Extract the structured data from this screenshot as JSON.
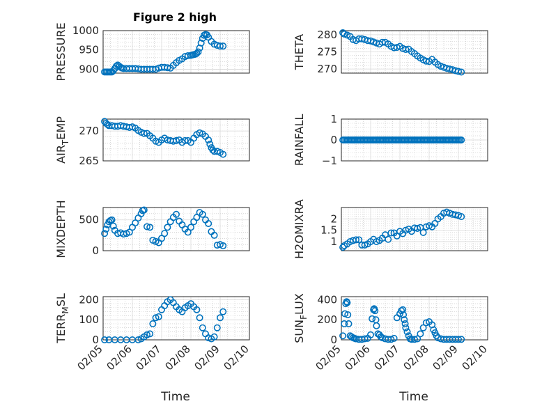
{
  "figure": {
    "title": "Figure 2 high",
    "marker_color": "#0072BD",
    "x_tick_labels": [
      "02/05",
      "02/06",
      "02/07",
      "02/08",
      "02/09",
      "02/10"
    ],
    "x_label": "Time"
  },
  "chart_data": [
    {
      "type": "scatter",
      "ylabel": "PRESSURE",
      "ylim": [
        890,
        1000
      ],
      "yticks": [
        900,
        950,
        1000
      ],
      "xlim": [
        "02/05",
        "02/10"
      ],
      "grid": true,
      "minor_grid": true,
      "x": [
        5.05,
        5.1,
        5.15,
        5.2,
        5.25,
        5.3,
        5.35,
        5.4,
        5.45,
        5.5,
        5.55,
        5.6,
        5.65,
        5.7,
        5.8,
        5.9,
        6.0,
        6.1,
        6.2,
        6.3,
        6.4,
        6.5,
        6.6,
        6.7,
        6.8,
        6.9,
        7.0,
        7.1,
        7.2,
        7.3,
        7.4,
        7.5,
        7.6,
        7.7,
        7.8,
        7.9,
        8.0,
        8.05,
        8.1,
        8.15,
        8.2,
        8.25,
        8.3,
        8.35,
        8.4,
        8.45,
        8.5,
        8.55,
        8.6,
        8.7,
        8.8,
        8.9,
        9.0,
        9.1
      ],
      "y": [
        893,
        893,
        893,
        893,
        893,
        893,
        896,
        902,
        908,
        911,
        908,
        905,
        903,
        902,
        902,
        902,
        902,
        902,
        901,
        900,
        900,
        900,
        900,
        900,
        900,
        903,
        905,
        905,
        904,
        903,
        910,
        917,
        923,
        927,
        933,
        935,
        936,
        937,
        938,
        939,
        941,
        945,
        955,
        968,
        980,
        988,
        990,
        989,
        983,
        972,
        965,
        962,
        960,
        960
      ],
      "annotation": ""
    },
    {
      "type": "scatter",
      "ylabel": "THETA",
      "ylim": [
        268.8,
        281.2
      ],
      "yticks": [
        270,
        275,
        280
      ],
      "xlim": [
        "02/05",
        "02/10"
      ],
      "grid": true,
      "minor_grid": true,
      "x": [
        5.05,
        5.1,
        5.2,
        5.3,
        5.4,
        5.5,
        5.6,
        5.7,
        5.8,
        5.9,
        6.0,
        6.1,
        6.2,
        6.3,
        6.4,
        6.5,
        6.6,
        6.7,
        6.8,
        6.9,
        7.0,
        7.1,
        7.2,
        7.3,
        7.4,
        7.5,
        7.6,
        7.7,
        7.8,
        7.9,
        8.0,
        8.1,
        8.2,
        8.3,
        8.4,
        8.5,
        8.6,
        8.7,
        8.8,
        8.9,
        9.0,
        9.1
      ],
      "y": [
        280.6,
        280.2,
        279.9,
        279.5,
        278.6,
        278.3,
        278.8,
        278.8,
        278.6,
        278.3,
        278.2,
        277.9,
        277.6,
        277.3,
        277.8,
        277.8,
        277.3,
        276.6,
        276.2,
        276.3,
        276.6,
        276.0,
        275.7,
        275.8,
        275.1,
        274.5,
        273.8,
        273.2,
        272.7,
        272.3,
        272.2,
        272.8,
        272.0,
        271.3,
        270.8,
        270.5,
        270.2,
        270.0,
        269.8,
        269.5,
        269.3,
        269.1
      ],
      "annotation": ""
    },
    {
      "type": "scatter",
      "ylabel": "AIR_TEMP",
      "ylim": [
        265,
        272
      ],
      "yticks": [
        265,
        270
      ],
      "xlim": [
        "02/05",
        "02/10"
      ],
      "grid": true,
      "minor_grid": true,
      "x": [
        5.05,
        5.1,
        5.15,
        5.2,
        5.3,
        5.4,
        5.5,
        5.6,
        5.7,
        5.8,
        5.9,
        6.0,
        6.1,
        6.2,
        6.3,
        6.4,
        6.5,
        6.6,
        6.7,
        6.8,
        6.9,
        7.0,
        7.1,
        7.2,
        7.3,
        7.4,
        7.5,
        7.6,
        7.7,
        7.8,
        7.9,
        8.0,
        8.1,
        8.2,
        8.3,
        8.4,
        8.5,
        8.6,
        8.65,
        8.7,
        8.75,
        8.8,
        8.9,
        9.0,
        9.1
      ],
      "y": [
        271.6,
        271.3,
        271.1,
        270.9,
        270.9,
        270.8,
        270.8,
        270.9,
        270.8,
        270.7,
        270.6,
        270.7,
        270.5,
        270.1,
        269.8,
        269.6,
        269.6,
        269.2,
        268.8,
        268.3,
        268.1,
        268.5,
        268.8,
        268.5,
        268.4,
        268.3,
        268.4,
        268.5,
        268.1,
        268.4,
        268.4,
        268.1,
        268.8,
        269.4,
        269.7,
        269.5,
        269.1,
        268.5,
        267.8,
        267.2,
        266.8,
        266.6,
        266.6,
        266.4,
        266.1
      ],
      "annotation": ""
    },
    {
      "type": "scatter",
      "ylabel": "RAINFALL",
      "ylim": [
        -1,
        1
      ],
      "yticks": [
        -1,
        0,
        1
      ],
      "xlim": [
        "02/05",
        "02/10"
      ],
      "grid": true,
      "minor_grid": true,
      "x": [
        5.05,
        5.1,
        5.15,
        5.2,
        5.25,
        5.3,
        5.35,
        5.4,
        5.45,
        5.5,
        5.55,
        5.6,
        5.65,
        5.7,
        5.75,
        5.8,
        5.85,
        5.9,
        5.95,
        6.0,
        6.05,
        6.1,
        6.15,
        6.2,
        6.25,
        6.3,
        6.35,
        6.4,
        6.45,
        6.5,
        6.55,
        6.6,
        6.65,
        6.7,
        6.75,
        6.8,
        6.85,
        6.9,
        6.95,
        7.0,
        7.05,
        7.1,
        7.15,
        7.2,
        7.25,
        7.3,
        7.35,
        7.4,
        7.45,
        7.5,
        7.55,
        7.6,
        7.65,
        7.7,
        7.75,
        7.8,
        7.85,
        7.9,
        7.95,
        8.0,
        8.05,
        8.1,
        8.15,
        8.2,
        8.25,
        8.3,
        8.35,
        8.4,
        8.45,
        8.5,
        8.55,
        8.6,
        8.65,
        8.7,
        8.75,
        8.8,
        8.85,
        8.9,
        8.95,
        9.0,
        9.05,
        9.1
      ],
      "y": [
        0,
        0,
        0,
        0,
        0,
        0,
        0,
        0,
        0,
        0,
        0,
        0,
        0,
        0,
        0,
        0,
        0,
        0,
        0,
        0,
        0,
        0,
        0,
        0,
        0,
        0,
        0,
        0,
        0,
        0,
        0,
        0,
        0,
        0,
        0,
        0,
        0,
        0,
        0,
        0,
        0,
        0,
        0,
        0,
        0,
        0,
        0,
        0,
        0,
        0,
        0,
        0,
        0,
        0,
        0,
        0,
        0,
        0,
        0,
        0,
        0,
        0,
        0,
        0,
        0,
        0,
        0,
        0,
        0,
        0,
        0,
        0,
        0,
        0,
        0,
        0,
        0,
        0,
        0,
        0,
        0,
        0
      ],
      "annotation": ""
    },
    {
      "type": "scatter",
      "ylabel": "MIXDEPTH",
      "ylim": [
        0,
        700
      ],
      "yticks": [
        0,
        500
      ],
      "xlim": [
        "02/05",
        "02/10"
      ],
      "grid": true,
      "minor_grid": true,
      "x": [
        5.05,
        5.1,
        5.15,
        5.2,
        5.25,
        5.3,
        5.35,
        5.4,
        5.5,
        5.6,
        5.7,
        5.8,
        5.9,
        6.0,
        6.1,
        6.2,
        6.3,
        6.35,
        6.4,
        6.5,
        6.6,
        6.7,
        6.8,
        6.9,
        7.0,
        7.1,
        7.2,
        7.3,
        7.4,
        7.5,
        7.6,
        7.7,
        7.8,
        7.9,
        8.0,
        8.1,
        8.2,
        8.3,
        8.4,
        8.5,
        8.6,
        8.7,
        8.8,
        8.9,
        9.0,
        9.1
      ],
      "y": [
        280,
        350,
        420,
        470,
        490,
        500,
        400,
        330,
        280,
        290,
        270,
        280,
        300,
        380,
        450,
        530,
        600,
        650,
        660,
        390,
        380,
        170,
        150,
        130,
        200,
        280,
        380,
        470,
        540,
        590,
        480,
        420,
        350,
        300,
        380,
        470,
        540,
        620,
        590,
        500,
        440,
        310,
        250,
        90,
        100,
        80
      ],
      "annotation": ""
    },
    {
      "type": "scatter",
      "ylabel": "H2OMIXRA",
      "ylim": [
        0.6,
        2.5
      ],
      "yticks": [
        1,
        1.5,
        2
      ],
      "xlim": [
        "02/05",
        "02/10"
      ],
      "grid": true,
      "minor_grid": true,
      "x": [
        5.05,
        5.1,
        5.2,
        5.3,
        5.4,
        5.5,
        5.6,
        5.7,
        5.8,
        5.9,
        6.0,
        6.1,
        6.2,
        6.3,
        6.4,
        6.5,
        6.6,
        6.7,
        6.8,
        6.9,
        7.0,
        7.1,
        7.2,
        7.3,
        7.4,
        7.5,
        7.6,
        7.7,
        7.8,
        7.9,
        8.0,
        8.1,
        8.2,
        8.3,
        8.4,
        8.5,
        8.6,
        8.7,
        8.8,
        8.9,
        9.0,
        9.1
      ],
      "y": [
        0.75,
        0.82,
        0.9,
        1.0,
        1.05,
        1.08,
        1.08,
        0.85,
        0.85,
        0.9,
        1.0,
        1.1,
        1.0,
        1.05,
        1.15,
        1.3,
        1.1,
        1.38,
        1.38,
        1.25,
        1.45,
        1.35,
        1.5,
        1.55,
        1.45,
        1.6,
        1.58,
        1.62,
        1.4,
        1.65,
        1.7,
        1.65,
        1.8,
        2.0,
        2.1,
        2.25,
        2.3,
        2.25,
        2.2,
        2.18,
        2.15,
        2.1
      ],
      "annotation": ""
    },
    {
      "type": "scatter",
      "ylabel": "TERR_MSL",
      "ylim": [
        0,
        215
      ],
      "yticks": [
        0,
        100,
        200
      ],
      "xlim": [
        "02/05",
        "02/10"
      ],
      "grid": true,
      "minor_grid": true,
      "x": [
        5.05,
        5.2,
        5.4,
        5.6,
        5.8,
        6.0,
        6.2,
        6.3,
        6.4,
        6.5,
        6.6,
        6.7,
        6.8,
        6.9,
        7.0,
        7.1,
        7.2,
        7.3,
        7.4,
        7.5,
        7.6,
        7.7,
        7.8,
        7.9,
        8.0,
        8.1,
        8.2,
        8.3,
        8.4,
        8.5,
        8.6,
        8.7,
        8.8,
        8.9,
        9.0,
        9.1
      ],
      "y": [
        0,
        0,
        0,
        0,
        0,
        0,
        0,
        5,
        15,
        25,
        30,
        80,
        110,
        115,
        150,
        170,
        190,
        200,
        185,
        165,
        150,
        140,
        160,
        170,
        180,
        165,
        150,
        110,
        60,
        30,
        10,
        5,
        15,
        60,
        110,
        140
      ],
      "annotation": ""
    },
    {
      "type": "scatter",
      "ylabel": "SUN_FLUX",
      "ylim": [
        0,
        430
      ],
      "yticks": [
        0,
        200,
        400
      ],
      "xlim": [
        "02/05",
        "02/10"
      ],
      "grid": true,
      "minor_grid": true,
      "x": [
        5.05,
        5.1,
        5.12,
        5.15,
        5.18,
        5.2,
        5.22,
        5.25,
        5.3,
        5.35,
        5.4,
        5.45,
        5.5,
        5.6,
        5.7,
        5.8,
        5.9,
        6.0,
        6.05,
        6.1,
        6.12,
        6.15,
        6.18,
        6.2,
        6.25,
        6.3,
        6.35,
        6.4,
        6.5,
        6.6,
        6.7,
        6.8,
        6.9,
        7.0,
        7.05,
        7.1,
        7.12,
        7.15,
        7.18,
        7.2,
        7.25,
        7.3,
        7.35,
        7.4,
        7.5,
        7.6,
        7.7,
        7.8,
        7.9,
        8.0,
        8.1,
        8.15,
        8.2,
        8.25,
        8.3,
        8.4,
        8.5,
        8.6,
        8.7,
        8.8,
        8.9,
        9.0,
        9.1
      ],
      "y": [
        40,
        160,
        260,
        360,
        380,
        370,
        250,
        160,
        40,
        30,
        20,
        15,
        10,
        5,
        5,
        10,
        15,
        50,
        210,
        300,
        310,
        290,
        200,
        140,
        60,
        50,
        30,
        20,
        10,
        5,
        5,
        15,
        220,
        260,
        290,
        300,
        250,
        200,
        160,
        120,
        80,
        40,
        10,
        5,
        5,
        10,
        60,
        120,
        170,
        180,
        150,
        100,
        70,
        40,
        20,
        10,
        5,
        5,
        5,
        5,
        5,
        5,
        5
      ],
      "annotation": ""
    }
  ]
}
